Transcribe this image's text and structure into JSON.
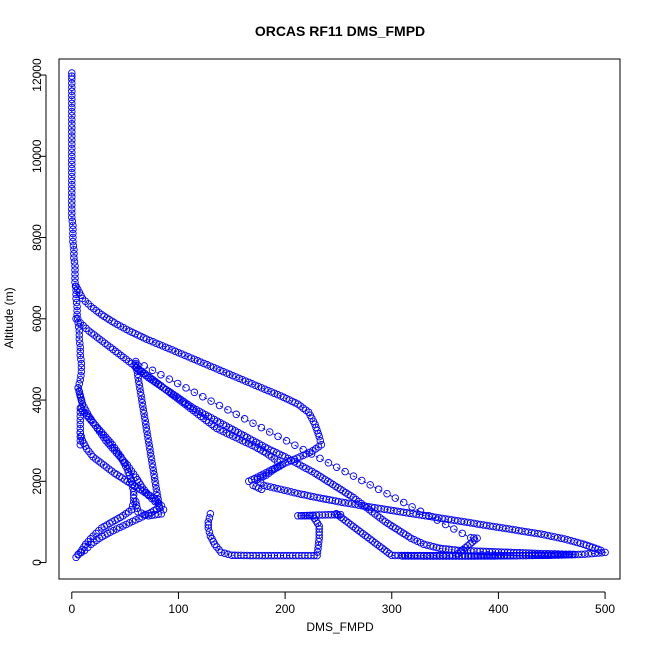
{
  "chart_data": {
    "type": "scatter",
    "title": "ORCAS RF11 DMS_FMPD",
    "xlabel": "DMS_FMPD",
    "ylabel": "Altitude (m)",
    "xlim": [
      -12,
      514
    ],
    "ylim": [
      -405,
      12395
    ],
    "xticks": [
      0,
      100,
      200,
      300,
      400,
      500
    ],
    "yticks": [
      0,
      2000,
      4000,
      6000,
      8000,
      10000,
      12000
    ],
    "grid": false,
    "color": "#0000ff",
    "marker": "open-circle",
    "series": [
      {
        "profile": "high-altitude-column",
        "points": [
          [
            0,
            12050
          ],
          [
            0,
            11900
          ],
          [
            0,
            11700
          ],
          [
            0,
            11500
          ],
          [
            0,
            11300
          ],
          [
            0,
            11100
          ],
          [
            0,
            10900
          ],
          [
            0,
            10700
          ],
          [
            0,
            10500
          ],
          [
            0,
            10300
          ],
          [
            0,
            10100
          ],
          [
            0,
            9900
          ],
          [
            0,
            9700
          ],
          [
            0,
            9500
          ],
          [
            0,
            9300
          ],
          [
            0,
            9100
          ],
          [
            0,
            8900
          ],
          [
            0,
            8700
          ],
          [
            0,
            8500
          ],
          [
            1,
            8300
          ],
          [
            1,
            8100
          ],
          [
            1,
            7900
          ],
          [
            2,
            7700
          ],
          [
            2,
            7500
          ],
          [
            3,
            7300
          ],
          [
            3,
            7100
          ],
          [
            3,
            6900
          ],
          [
            4,
            6700
          ],
          [
            4,
            6500
          ],
          [
            5,
            6300
          ],
          [
            5,
            6100
          ],
          [
            6,
            5900
          ],
          [
            7,
            5700
          ],
          [
            7,
            5500
          ],
          [
            8,
            5300
          ],
          [
            8,
            5100
          ],
          [
            9,
            4900
          ],
          [
            9,
            4700
          ],
          [
            8,
            4500
          ],
          [
            6,
            4300
          ],
          [
            8,
            4100
          ],
          [
            10,
            3900
          ],
          [
            8,
            3700
          ],
          [
            8,
            3500
          ],
          [
            8,
            3300
          ],
          [
            8,
            3100
          ],
          [
            8,
            2900
          ]
        ]
      },
      {
        "profile": "left-inner-loop",
        "points": [
          [
            8,
            3800
          ],
          [
            18,
            3500
          ],
          [
            28,
            3200
          ],
          [
            38,
            2900
          ],
          [
            46,
            2600
          ],
          [
            52,
            2300
          ],
          [
            56,
            2000
          ],
          [
            58,
            1750
          ],
          [
            58,
            1500
          ],
          [
            56,
            1300
          ],
          [
            48,
            1150
          ],
          [
            38,
            1000
          ],
          [
            28,
            850
          ],
          [
            20,
            650
          ],
          [
            13,
            450
          ],
          [
            8,
            250
          ],
          [
            4,
            130
          ],
          [
            6,
            200
          ],
          [
            12,
            300
          ],
          [
            18,
            450
          ],
          [
            26,
            600
          ],
          [
            36,
            750
          ],
          [
            48,
            900
          ],
          [
            60,
            1050
          ],
          [
            72,
            1200
          ],
          [
            82,
            1350
          ],
          [
            86,
            1300
          ],
          [
            84,
            1200
          ],
          [
            72,
            1150
          ],
          [
            62,
            1250
          ],
          [
            60,
            1500
          ]
        ]
      },
      {
        "profile": "mid-loop",
        "points": [
          [
            6,
            4300
          ],
          [
            10,
            3900
          ],
          [
            16,
            3600
          ],
          [
            24,
            3300
          ],
          [
            32,
            3000
          ],
          [
            42,
            2700
          ],
          [
            52,
            2400
          ],
          [
            60,
            2100
          ],
          [
            66,
            1850
          ],
          [
            72,
            1650
          ],
          [
            78,
            1500
          ],
          [
            84,
            1400
          ],
          [
            76,
            1600
          ],
          [
            64,
            1800
          ],
          [
            52,
            2000
          ],
          [
            40,
            2200
          ],
          [
            30,
            2400
          ],
          [
            20,
            2600
          ],
          [
            14,
            2800
          ],
          [
            10,
            3000
          ],
          [
            8,
            3200
          ]
        ]
      },
      {
        "profile": "center-descent",
        "points": [
          [
            4,
            6000
          ],
          [
            8,
            5900
          ],
          [
            16,
            5700
          ],
          [
            26,
            5500
          ],
          [
            36,
            5300
          ],
          [
            46,
            5100
          ],
          [
            56,
            4900
          ],
          [
            66,
            4700
          ],
          [
            76,
            4500
          ],
          [
            86,
            4300
          ],
          [
            96,
            4100
          ],
          [
            106,
            3900
          ],
          [
            116,
            3700
          ],
          [
            126,
            3500
          ],
          [
            136,
            3300
          ],
          [
            148,
            3150
          ],
          [
            160,
            3000
          ],
          [
            172,
            2850
          ],
          [
            182,
            2700
          ],
          [
            190,
            2550
          ],
          [
            196,
            2400
          ],
          [
            174,
            2100
          ],
          [
            166,
            2000
          ],
          [
            170,
            1900
          ],
          [
            178,
            1800
          ]
        ]
      },
      {
        "profile": "upper-right-branch",
        "points": [
          [
            4,
            6800
          ],
          [
            10,
            6500
          ],
          [
            18,
            6300
          ],
          [
            28,
            6100
          ],
          [
            40,
            5900
          ],
          [
            54,
            5700
          ],
          [
            70,
            5500
          ],
          [
            88,
            5300
          ],
          [
            106,
            5100
          ],
          [
            124,
            4900
          ],
          [
            142,
            4700
          ],
          [
            160,
            4500
          ],
          [
            178,
            4300
          ],
          [
            196,
            4100
          ],
          [
            212,
            3900
          ],
          [
            222,
            3700
          ],
          [
            228,
            3400
          ],
          [
            232,
            3100
          ],
          [
            234,
            2900
          ],
          [
            226,
            2750
          ],
          [
            214,
            2600
          ],
          [
            200,
            2450
          ],
          [
            190,
            2300
          ],
          [
            182,
            2150
          ],
          [
            174,
            2050
          ],
          [
            180,
            1900
          ],
          [
            196,
            1800
          ],
          [
            212,
            1700
          ],
          [
            230,
            1600
          ],
          [
            250,
            1500
          ],
          [
            272,
            1400
          ],
          [
            296,
            1300
          ],
          [
            320,
            1200
          ],
          [
            344,
            1100
          ],
          [
            368,
            1000
          ],
          [
            392,
            900
          ],
          [
            416,
            800
          ],
          [
            440,
            700
          ],
          [
            462,
            580
          ],
          [
            480,
            450
          ],
          [
            496,
            300
          ],
          [
            500,
            250
          ],
          [
            478,
            200
          ],
          [
            450,
            180
          ],
          [
            420,
            170
          ],
          [
            390,
            160
          ],
          [
            360,
            160
          ],
          [
            330,
            160
          ],
          [
            310,
            160
          ]
        ]
      },
      {
        "profile": "lower-right-branch",
        "points": [
          [
            60,
            4800
          ],
          [
            72,
            4550
          ],
          [
            86,
            4300
          ],
          [
            100,
            4050
          ],
          [
            114,
            3800
          ],
          [
            128,
            3600
          ],
          [
            142,
            3400
          ],
          [
            156,
            3200
          ],
          [
            170,
            3000
          ],
          [
            184,
            2800
          ],
          [
            200,
            2600
          ],
          [
            214,
            2400
          ],
          [
            228,
            2200
          ],
          [
            240,
            2000
          ],
          [
            252,
            1800
          ],
          [
            264,
            1600
          ],
          [
            274,
            1400
          ],
          [
            284,
            1200
          ],
          [
            294,
            1000
          ],
          [
            306,
            800
          ],
          [
            318,
            600
          ],
          [
            330,
            450
          ],
          [
            345,
            350
          ],
          [
            362,
            300
          ],
          [
            380,
            280
          ],
          [
            400,
            260
          ],
          [
            420,
            240
          ],
          [
            440,
            220
          ],
          [
            456,
            210
          ],
          [
            470,
            200
          ],
          [
            440,
            180
          ],
          [
            400,
            165
          ],
          [
            360,
            160
          ],
          [
            330,
            160
          ]
        ]
      },
      {
        "profile": "boundary-layer-runs",
        "points": [
          [
            130,
            1200
          ],
          [
            128,
            1000
          ],
          [
            128,
            850
          ],
          [
            130,
            650
          ],
          [
            134,
            450
          ],
          [
            140,
            250
          ],
          [
            150,
            180
          ],
          [
            170,
            170
          ],
          [
            190,
            170
          ],
          [
            210,
            170
          ],
          [
            230,
            170
          ],
          [
            232,
            600
          ],
          [
            232,
            900
          ],
          [
            226,
            1150
          ],
          [
            212,
            1150
          ],
          [
            232,
            1170
          ],
          [
            252,
            1180
          ],
          [
            248,
            1200
          ],
          [
            300,
            175
          ],
          [
            330,
            170
          ],
          [
            360,
            170
          ],
          [
            380,
            600
          ],
          [
            374,
            610
          ],
          [
            60,
            4950
          ],
          [
            62,
            4850
          ],
          [
            60,
            4900
          ],
          [
            82,
            1380
          ]
        ]
      }
    ]
  }
}
